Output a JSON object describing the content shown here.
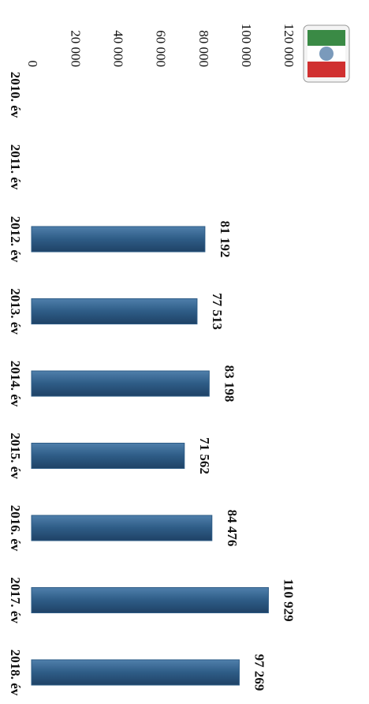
{
  "chart_data": {
    "type": "bar",
    "orientation": "horizontal",
    "categories": [
      "2010. év",
      "2011. év",
      "2012. év",
      "2013. év",
      "2014. év",
      "2015. év",
      "2016. év",
      "2017. év",
      "2018. év"
    ],
    "values": [
      null,
      null,
      81192,
      77513,
      83198,
      71562,
      84476,
      110929,
      97269
    ],
    "value_labels": [
      null,
      null,
      "81 192",
      "77 513",
      "83 198",
      "71 562",
      "84 476",
      "110 929",
      "97 269"
    ],
    "color": "#2e5c86",
    "xlim": [
      0,
      120000
    ],
    "xticks": [
      0,
      {
        "value": 20000,
        "label": "20 000"
      },
      {
        "value": 40000,
        "label": "40 000"
      },
      {
        "value": 60000,
        "label": "60 000"
      },
      {
        "value": 80000,
        "label": "80 000"
      },
      {
        "value": 100000,
        "label": "100 000"
      },
      {
        "value": 120000,
        "label": "120 000"
      }
    ],
    "grid": false
  }
}
